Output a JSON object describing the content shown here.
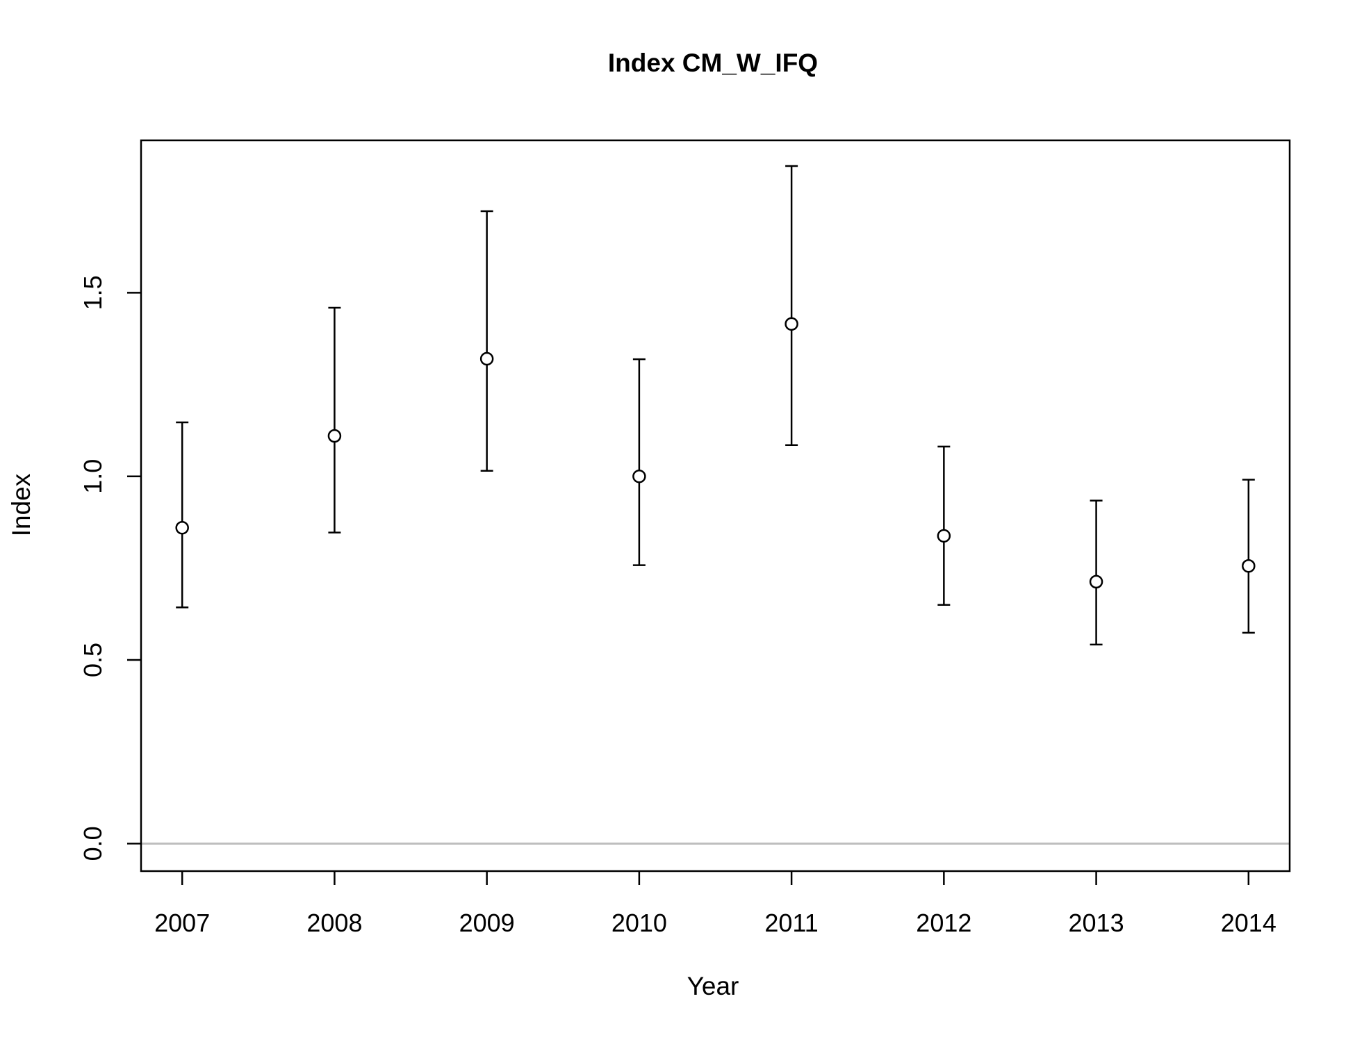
{
  "chart_data": {
    "type": "scatter",
    "title": "Index CM_W_IFQ",
    "xlabel": "Year",
    "ylabel": "Index",
    "x": [
      2007,
      2008,
      2009,
      2010,
      2011,
      2012,
      2013,
      2014
    ],
    "x_tick_labels": [
      "2007",
      "2008",
      "2009",
      "2010",
      "2011",
      "2012",
      "2013",
      "2014"
    ],
    "y_ticks": [
      0.0,
      0.5,
      1.0,
      1.5
    ],
    "y_tick_labels": [
      "0.0",
      "0.5",
      "1.0",
      "1.5"
    ],
    "xlim": [
      2006.73,
      2014.27
    ],
    "ylim": [
      -0.075,
      1.915
    ],
    "series": [
      {
        "values": [
          0.86,
          1.11,
          1.32,
          1.0,
          1.415,
          0.838,
          0.713,
          0.756
        ],
        "lower": [
          0.643,
          0.847,
          1.015,
          0.758,
          1.085,
          0.65,
          0.542,
          0.574
        ],
        "upper": [
          1.147,
          1.459,
          1.722,
          1.319,
          1.845,
          1.081,
          0.934,
          0.991
        ]
      }
    ],
    "reference_line": {
      "y": 0.0,
      "color": "#bebebe"
    },
    "grid": false,
    "legend": "none",
    "colors": {
      "points": "#000000",
      "background": "#ffffff"
    }
  }
}
